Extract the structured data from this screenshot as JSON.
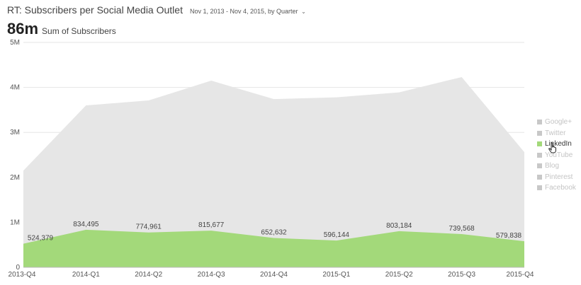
{
  "header": {
    "title": "RT: Subscribers per Social Media Outlet",
    "date_range": "Nov 1, 2013 - Nov 4, 2015, by Quarter",
    "caret": "⌄"
  },
  "kpi": {
    "value": "86m",
    "label": "Sum of Subscribers"
  },
  "legend": [
    {
      "label": "Google+",
      "active": false
    },
    {
      "label": "Twitter",
      "active": false
    },
    {
      "label": "LinkedIn",
      "active": true
    },
    {
      "label": "YouTube",
      "active": false
    },
    {
      "label": "Blog",
      "active": false
    },
    {
      "label": "Pinterest",
      "active": false
    },
    {
      "label": "Facebook",
      "active": false
    }
  ],
  "colors": {
    "highlight": "#a3d97a",
    "background_area": "#e6e6e6",
    "inactive": "#c8c8c8",
    "gridline": "#e6e6e6",
    "axis": "#bbbbbb"
  },
  "chart_data": {
    "type": "area",
    "categories": [
      "2013-Q4",
      "2014-Q1",
      "2014-Q2",
      "2014-Q3",
      "2014-Q4",
      "2015-Q1",
      "2015-Q2",
      "2015-Q3",
      "2015-Q4"
    ],
    "yticks": [
      "0",
      "1M",
      "2M",
      "3M",
      "4M",
      "5M"
    ],
    "ylim": [
      0,
      5000000
    ],
    "grid": true,
    "legend_position": "right",
    "series": [
      {
        "name": "LinkedIn",
        "values": [
          524379,
          834495,
          774961,
          815677,
          652632,
          596144,
          803184,
          739568,
          579838
        ],
        "labels": [
          "524,379",
          "834,495",
          "774,961",
          "815,677",
          "652,632",
          "596,144",
          "803,184",
          "739,568",
          "579,838"
        ]
      },
      {
        "values": [
          2150000,
          3600000,
          3710000,
          4150000,
          3740000,
          3780000,
          3890000,
          4230000,
          2560000
        ]
      }
    ]
  }
}
